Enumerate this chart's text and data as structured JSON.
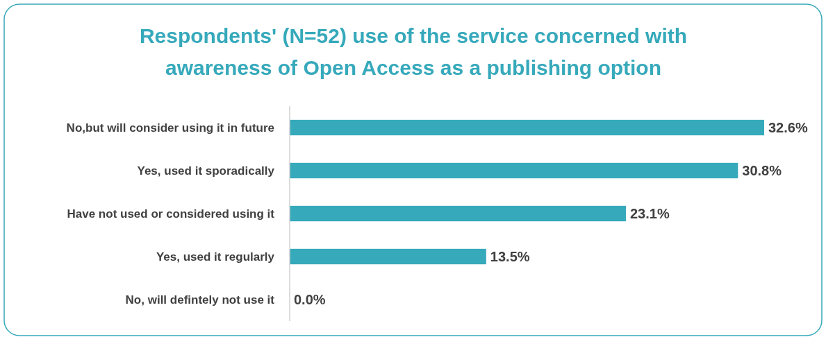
{
  "chart_data": {
    "type": "bar",
    "orientation": "horizontal",
    "title": "Respondents' (N=52) use of the service concerned with\nawareness of Open Access as a publishing option",
    "categories": [
      "No,but will consider using it in future",
      "Yes, used it sporadically",
      "Have not used or considered using it",
      "Yes, used it regularly",
      "No, will defintely not use it"
    ],
    "values": [
      32.6,
      30.8,
      23.1,
      13.5,
      0.0
    ],
    "value_labels": [
      "32.6%",
      "30.8%",
      "23.1%",
      "13.5%",
      "0.0%"
    ],
    "color": "#36a9bb"
  }
}
